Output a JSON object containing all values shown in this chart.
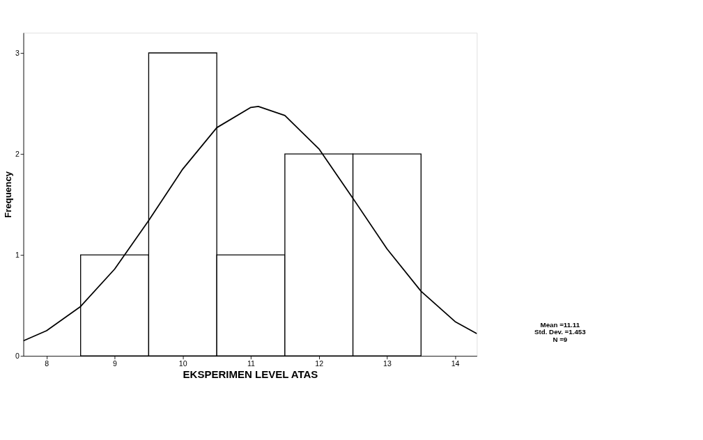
{
  "chart_data": {
    "type": "histogram",
    "xlabel": "EKSPERIMEN LEVEL ATAS",
    "ylabel": "Frequency",
    "bins": [
      8.5,
      9.5,
      10.5,
      11.5,
      12.5,
      13.5
    ],
    "values": [
      1,
      3,
      1,
      2,
      2
    ],
    "color": "#ffffff",
    "series": [
      {
        "type": "line",
        "color": "#000000",
        "x": [
          7.66,
          8,
          8.5,
          9,
          9.5,
          10,
          10.5,
          11,
          11.11,
          11.5,
          12,
          12.5,
          13,
          13.5,
          14,
          14.32
        ],
        "values": [
          0.15,
          0.25,
          0.49,
          0.86,
          1.34,
          1.85,
          2.26,
          2.46,
          2.47,
          2.38,
          2.05,
          1.56,
          1.06,
          0.64,
          0.34,
          0.22
        ]
      }
    ],
    "xlim": [
      7.66,
      14.32
    ],
    "ylim": [
      0,
      3.2
    ],
    "xticks": [
      8,
      9,
      10,
      11,
      12,
      13,
      14
    ],
    "yticks": [
      0,
      1,
      2,
      3
    ],
    "grid": false,
    "annotations": [
      "Mean =11.11",
      "Std. Dev. =1.453",
      "N =9"
    ]
  }
}
